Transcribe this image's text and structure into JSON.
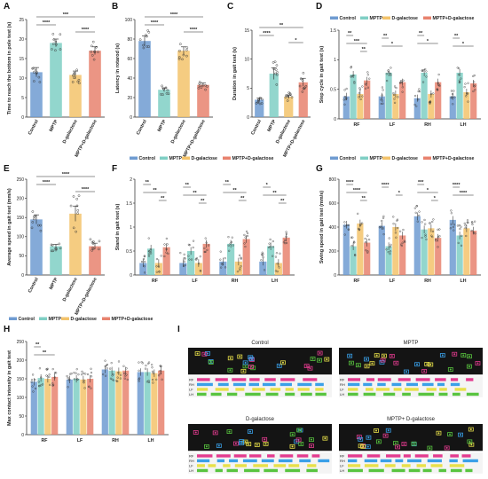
{
  "colors": {
    "control": "#6f9bd1",
    "mptp": "#7fcfc4",
    "dgal": "#f3c36b",
    "combo": "#e8826e",
    "photo_bg": "#141414",
    "paw_rf": "#e33b8f",
    "paw_rh": "#3aa0e8",
    "paw_lf": "#e8e04a",
    "paw_lh": "#58c43f"
  },
  "legend": [
    "Control",
    "MPTP",
    "D-galactose",
    "MPTP+D-galactose"
  ],
  "panel_I": {
    "label": "I",
    "titles": [
      "Control",
      "MPTP",
      "D-galactose",
      "MPTP+ D-galactose"
    ],
    "track_labels": [
      "RF",
      "RH",
      "LF",
      "LH"
    ]
  },
  "chart_data": [
    {
      "panel": "A",
      "type": "bar",
      "categories": [
        "Control",
        "MPTP",
        "D-galactose",
        "MPTP+D-galactose"
      ],
      "values": [
        11.5,
        19,
        10.8,
        17
      ],
      "errors": [
        1.2,
        1.0,
        1.0,
        1.0
      ],
      "ylabel": "Time to reach the bottom in pole test (s)",
      "ylim": [
        0,
        25
      ],
      "yticks": [
        0,
        5,
        10,
        15,
        20,
        25
      ],
      "significance": [
        {
          "from": 0,
          "to": 1,
          "text": "****"
        },
        {
          "from": 0,
          "to": 3,
          "text": "***"
        },
        {
          "from": 2,
          "to": 3,
          "text": "****"
        }
      ]
    },
    {
      "panel": "B",
      "type": "bar",
      "categories": [
        "Control",
        "MPTP",
        "D-galactose",
        "MPTP+D-galactose"
      ],
      "values": [
        78,
        28,
        68,
        33
      ],
      "errors": [
        5,
        2,
        4,
        2
      ],
      "ylabel": "Latency in rotarod (s)",
      "ylim": [
        0,
        100
      ],
      "yticks": [
        0,
        20,
        40,
        60,
        80,
        100
      ],
      "significance": [
        {
          "from": 0,
          "to": 1,
          "text": "****"
        },
        {
          "from": 0,
          "to": 3,
          "text": "****"
        },
        {
          "from": 2,
          "to": 3,
          "text": "****"
        }
      ]
    },
    {
      "panel": "C",
      "type": "bar",
      "categories": [
        "Control",
        "MPTP",
        "D-galactose",
        "MPTP+D-galactose"
      ],
      "values": [
        3,
        7.5,
        3.5,
        6
      ],
      "errors": [
        0.3,
        1.0,
        0.3,
        0.7
      ],
      "ylabel": "Duration in gait test (s)",
      "ylim": [
        0,
        15
      ],
      "yticks": [
        0,
        5,
        10,
        15
      ],
      "significance": [
        {
          "from": 0,
          "to": 1,
          "text": "****"
        },
        {
          "from": 0,
          "to": 3,
          "text": "**"
        },
        {
          "from": 2,
          "to": 3,
          "text": "*"
        }
      ]
    },
    {
      "panel": "D",
      "type": "bar",
      "categories": [
        "RF",
        "LF",
        "RH",
        "LH"
      ],
      "series": [
        {
          "name": "Control",
          "values": [
            0.38,
            0.38,
            0.35,
            0.38
          ]
        },
        {
          "name": "MPTP",
          "values": [
            0.75,
            0.78,
            0.78,
            0.78
          ]
        },
        {
          "name": "D-galactose",
          "values": [
            0.42,
            0.42,
            0.42,
            0.45
          ]
        },
        {
          "name": "MPTP+D-galactose",
          "values": [
            0.65,
            0.62,
            0.62,
            0.6
          ]
        }
      ],
      "ylabel": "Step cycle in gait test (s)",
      "ylim": [
        0,
        1.5
      ],
      "yticks": [
        0,
        0.5,
        1.0,
        1.5
      ],
      "significance": [
        {
          "g": 0,
          "from": 0,
          "to": 1,
          "text": "**"
        },
        {
          "g": 0,
          "from": 0,
          "to": 3,
          "text": "***"
        },
        {
          "g": 0,
          "from": 2,
          "to": 3,
          "text": "**"
        },
        {
          "g": 1,
          "from": 0,
          "to": 1,
          "text": "**"
        },
        {
          "g": 1,
          "from": 0,
          "to": 3,
          "text": "*"
        },
        {
          "g": 2,
          "from": 0,
          "to": 1,
          "text": "**"
        },
        {
          "g": 2,
          "from": 0,
          "to": 3,
          "text": "*"
        },
        {
          "g": 3,
          "from": 0,
          "to": 1,
          "text": "**"
        },
        {
          "g": 3,
          "from": 0,
          "to": 3,
          "text": "*"
        }
      ]
    },
    {
      "panel": "E",
      "type": "bar",
      "categories": [
        "Control",
        "MPTP",
        "D-galactose",
        "MPTP+D-galactose"
      ],
      "values": [
        145,
        75,
        160,
        75
      ],
      "errors": [
        12,
        5,
        20,
        8
      ],
      "ylabel": "Average speed in gait test (mm/s)",
      "ylim": [
        0,
        250
      ],
      "yticks": [
        0,
        50,
        100,
        150,
        200,
        250
      ],
      "significance": [
        {
          "from": 0,
          "to": 1,
          "text": "****"
        },
        {
          "from": 0,
          "to": 3,
          "text": "****"
        },
        {
          "from": 2,
          "to": 3,
          "text": "****"
        }
      ]
    },
    {
      "panel": "F",
      "type": "bar",
      "categories": [
        "RF",
        "LF",
        "RH",
        "LH"
      ],
      "series": [
        {
          "name": "Control",
          "values": [
            0.25,
            0.25,
            0.28,
            0.28
          ]
        },
        {
          "name": "MPTP",
          "values": [
            0.55,
            0.5,
            0.65,
            0.6
          ]
        },
        {
          "name": "D-galactose",
          "values": [
            0.25,
            0.25,
            0.28,
            0.25
          ]
        },
        {
          "name": "MPTP+D-galactose",
          "values": [
            0.58,
            0.65,
            0.75,
            0.78
          ]
        }
      ],
      "ylabel": "Stand in gait test (s)",
      "ylim": [
        0,
        2.0
      ],
      "yticks": [
        0,
        0.5,
        1.0,
        1.5,
        2.0
      ],
      "significance": [
        {
          "g": 0,
          "from": 0,
          "to": 1,
          "text": "**"
        },
        {
          "g": 0,
          "from": 0,
          "to": 3,
          "text": "**"
        },
        {
          "g": 0,
          "from": 2,
          "to": 3,
          "text": "**"
        },
        {
          "g": 1,
          "from": 0,
          "to": 1,
          "text": "**"
        },
        {
          "g": 1,
          "from": 0,
          "to": 3,
          "text": "**"
        },
        {
          "g": 1,
          "from": 2,
          "to": 3,
          "text": "**"
        },
        {
          "g": 2,
          "from": 0,
          "to": 1,
          "text": "**"
        },
        {
          "g": 2,
          "from": 0,
          "to": 3,
          "text": "**"
        },
        {
          "g": 2,
          "from": 2,
          "to": 3,
          "text": "**"
        },
        {
          "g": 3,
          "from": 0,
          "to": 1,
          "text": "*"
        },
        {
          "g": 3,
          "from": 0,
          "to": 3,
          "text": "**"
        },
        {
          "g": 3,
          "from": 2,
          "to": 3,
          "text": "**"
        }
      ]
    },
    {
      "panel": "G",
      "type": "bar",
      "categories": [
        "RF",
        "LF",
        "RH",
        "LH"
      ],
      "series": [
        {
          "name": "Control",
          "values": [
            420,
            410,
            490,
            460
          ]
        },
        {
          "name": "MPTP",
          "values": [
            240,
            240,
            380,
            330
          ]
        },
        {
          "name": "D-galactose",
          "values": [
            430,
            400,
            390,
            390
          ]
        },
        {
          "name": "MPTP+D-galactose",
          "values": [
            270,
            330,
            310,
            370
          ]
        }
      ],
      "ylabel": "Swing speed in gait test (mm/s)",
      "ylim": [
        0,
        800
      ],
      "yticks": [
        0,
        200,
        400,
        600,
        800
      ],
      "significance": [
        {
          "g": 0,
          "from": 0,
          "to": 1,
          "text": "****"
        },
        {
          "g": 0,
          "from": 0,
          "to": 3,
          "text": "****"
        },
        {
          "g": 0,
          "from": 2,
          "to": 3,
          "text": "**"
        },
        {
          "g": 1,
          "from": 0,
          "to": 1,
          "text": "****"
        },
        {
          "g": 1,
          "from": 2,
          "to": 3,
          "text": "*"
        },
        {
          "g": 2,
          "from": 0,
          "to": 1,
          "text": "***"
        },
        {
          "g": 2,
          "from": 0,
          "to": 3,
          "text": "*"
        },
        {
          "g": 2,
          "from": 2,
          "to": 3,
          "text": "*"
        },
        {
          "g": 3,
          "from": 0,
          "to": 1,
          "text": "****"
        },
        {
          "g": 3,
          "from": 0,
          "to": 3,
          "text": "****"
        }
      ]
    },
    {
      "panel": "H",
      "type": "bar",
      "categories": [
        "RF",
        "LF",
        "RH",
        "LH"
      ],
      "series": [
        {
          "name": "Control",
          "values": [
            142,
            148,
            175,
            168
          ]
        },
        {
          "name": "MPTP",
          "values": [
            152,
            150,
            172,
            168
          ]
        },
        {
          "name": "D-galactose",
          "values": [
            150,
            148,
            170,
            165
          ]
        },
        {
          "name": "MPTP+D-galactose",
          "values": [
            155,
            150,
            172,
            172
          ]
        }
      ],
      "ylabel": "Max contact intensity in gait test",
      "ylim": [
        0,
        250
      ],
      "yticks": [
        0,
        50,
        100,
        150,
        200,
        250
      ],
      "significance": [
        {
          "g": 0,
          "from": 0,
          "to": 1,
          "text": "**"
        },
        {
          "g": 0,
          "from": 0,
          "to": 3,
          "text": "**"
        }
      ]
    }
  ]
}
